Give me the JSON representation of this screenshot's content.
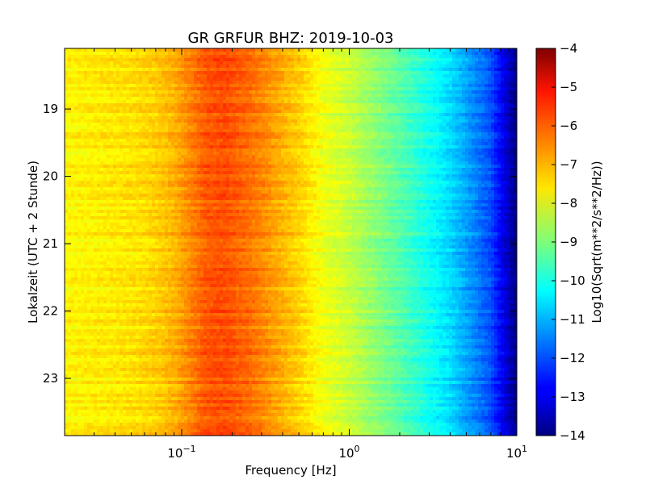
{
  "chart_data": {
    "type": "heatmap",
    "title": "GR GRFUR BHZ: 2019-10-03",
    "xlabel": "Frequency [Hz]",
    "ylabel": "Lokalzeit (UTC + 2 Stunde)",
    "x_scale": "log",
    "xlim": [
      0.02,
      10
    ],
    "ylim": [
      18.1,
      23.85
    ],
    "y_inverted": true,
    "x_ticks": [
      {
        "value": 0.1,
        "base": "10",
        "exp": "−1"
      },
      {
        "value": 1,
        "base": "10",
        "exp": "0"
      },
      {
        "value": 10,
        "base": "10",
        "exp": "1"
      }
    ],
    "y_ticks": [
      19,
      20,
      21,
      22,
      23
    ],
    "y_tick_labels": [
      "19",
      "20",
      "21",
      "22",
      "23"
    ],
    "colorbar": {
      "label": "Log10(Sqrt(m**2/s**2/Hz))",
      "min": -14,
      "max": -4,
      "ticks": [
        -4,
        -5,
        -6,
        -7,
        -8,
        -9,
        -10,
        -11,
        -12,
        -13,
        -14
      ],
      "tick_labels": [
        "−4",
        "−5",
        "−6",
        "−7",
        "−8",
        "−9",
        "−10",
        "−11",
        "−12",
        "−13",
        "−14"
      ],
      "colormap": "jet"
    },
    "spectrum_profile": [
      {
        "freq": 0.02,
        "level": -7.7
      },
      {
        "freq": 0.03,
        "level": -7.6
      },
      {
        "freq": 0.05,
        "level": -7.5
      },
      {
        "freq": 0.07,
        "level": -7.3
      },
      {
        "freq": 0.09,
        "level": -7.0
      },
      {
        "freq": 0.11,
        "level": -6.6
      },
      {
        "freq": 0.14,
        "level": -6.1
      },
      {
        "freq": 0.18,
        "level": -6.0
      },
      {
        "freq": 0.25,
        "level": -6.3
      },
      {
        "freq": 0.35,
        "level": -6.8
      },
      {
        "freq": 0.5,
        "level": -7.3
      },
      {
        "freq": 0.7,
        "level": -7.9
      },
      {
        "freq": 1.0,
        "level": -8.3
      },
      {
        "freq": 2.0,
        "level": -9.4
      },
      {
        "freq": 4.0,
        "level": -10.6
      },
      {
        "freq": 7.0,
        "level": -12.0
      },
      {
        "freq": 10.0,
        "level": -14.0
      }
    ],
    "grid": false,
    "legend": "colorbar-right"
  }
}
